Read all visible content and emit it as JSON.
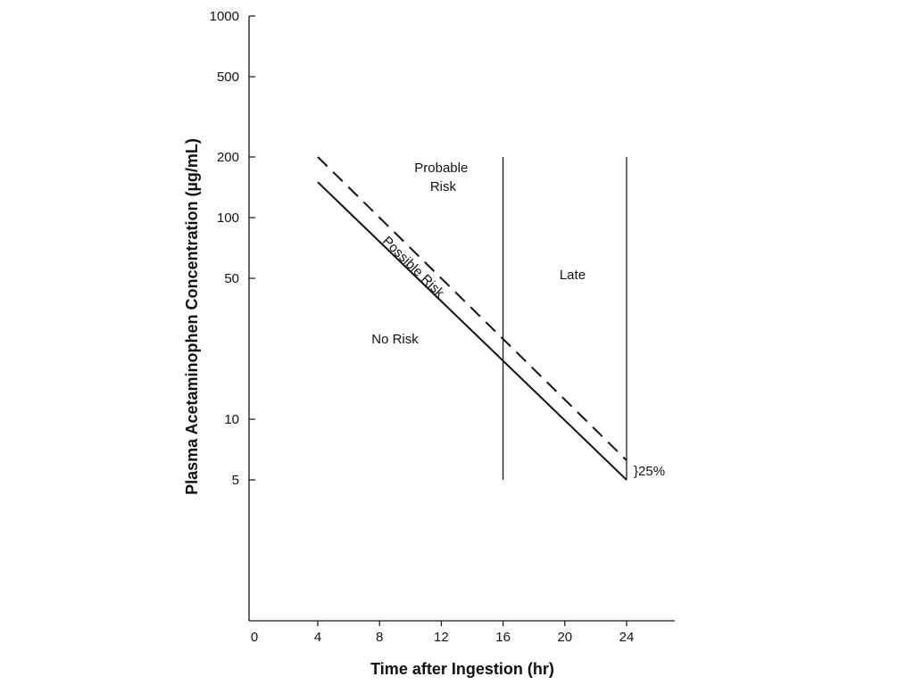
{
  "chart_data": {
    "type": "line",
    "title": "",
    "xlabel": "Time after Ingestion (hr)",
    "ylabel": "Plasma Acetaminophen Concentration (µg/mL)",
    "xlim": [
      0,
      26
    ],
    "ylim": [
      1,
      1000
    ],
    "yscale": "log",
    "grid": false,
    "x_ticks": [
      0,
      4,
      8,
      12,
      16,
      20,
      24
    ],
    "y_ticks": [
      5,
      10,
      50,
      100,
      200,
      500,
      1000
    ],
    "series": [
      {
        "style": "dashed",
        "x": [
          4,
          24
        ],
        "y": [
          200,
          6.25
        ]
      },
      {
        "style": "solid",
        "x": [
          4,
          24
        ],
        "y": [
          150,
          5
        ]
      }
    ],
    "vertical_lines": [
      {
        "x": 16,
        "y_range": [
          5,
          200
        ]
      },
      {
        "x": 24,
        "y_range": [
          5,
          200
        ]
      }
    ],
    "annotations": {
      "probable_risk": {
        "lines": [
          "Probable",
          "Risk"
        ],
        "x": 12,
        "y": 140
      },
      "possible_risk": {
        "text": "Possible Risk",
        "x": 10,
        "y": 55
      },
      "late": {
        "text": "Late",
        "x": 20.5,
        "y": 52
      },
      "no_risk": {
        "text": "No Risk",
        "x": 9,
        "y": 25
      },
      "gap_label": {
        "text": "}25%"
      }
    }
  }
}
